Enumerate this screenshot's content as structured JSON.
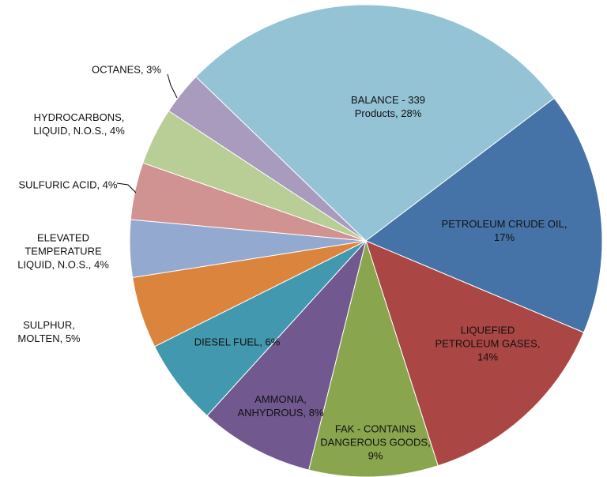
{
  "chart_data": {
    "type": "pie",
    "values": [
      28,
      17,
      14,
      9,
      8,
      6,
      5,
      4,
      4,
      4,
      3
    ],
    "value_labels": [
      "BALANCE - 339 Products, 28%",
      "PETROLEUM CRUDE OIL, 17%",
      "LIQUEFIED PETROLEUM GASES, 14%",
      "FAK - CONTAINS DANGEROUS GOODS, 9%",
      "AMMONIA, ANHYDROUS, 8%",
      "DIESEL FUEL, 6%",
      "SULPHUR, MOLTEN, 5%",
      "ELEVATED TEMPERATURE LIQUID, N.O.S., 4%",
      "SULFURIC ACID, 4%",
      "HYDROCARBONS, LIQUID, N.O.S., 4%",
      "OCTANES, 3%"
    ],
    "colors": [
      "#93c3d5",
      "#4573a7",
      "#aa4643",
      "#89a54e",
      "#71588f",
      "#4198af",
      "#db843d",
      "#93a9cf",
      "#d19392",
      "#b9cd96",
      "#a99bbd"
    ]
  }
}
